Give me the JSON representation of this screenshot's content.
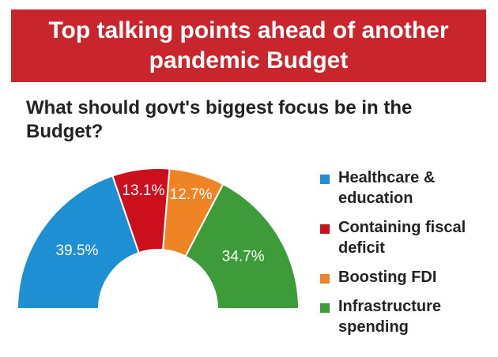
{
  "chart_data": {
    "type": "semi-donut",
    "title": "Top talking points ahead of another pandemic Budget",
    "subtitle": "What should govt's biggest focus be in the Budget?",
    "categories": [
      "Healthcare & education",
      "Containing fiscal deficit",
      "Boosting FDI",
      "Infrastructure spending"
    ],
    "values": [
      39.5,
      13.1,
      12.7,
      34.7
    ],
    "value_labels": [
      "39.5%",
      "13.1%",
      "12.7%",
      "34.7%"
    ],
    "colors": [
      "#1f8fd3",
      "#cc0f1d",
      "#ee8426",
      "#3d9b3a"
    ]
  }
}
